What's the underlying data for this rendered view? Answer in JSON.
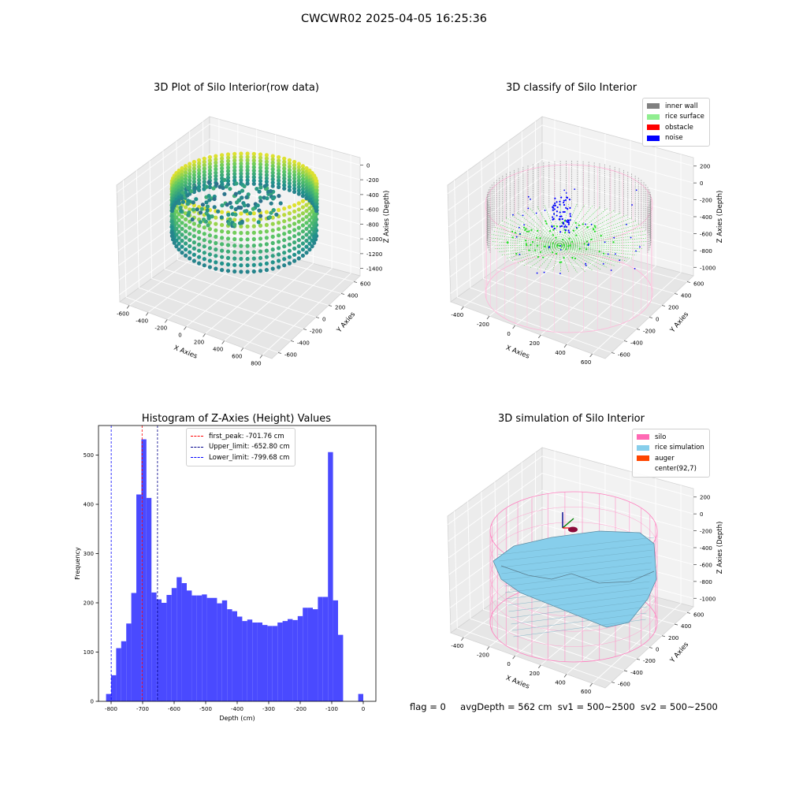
{
  "figure_title": "CWCWR02 2025-04-05 16:25:36",
  "status_line": {
    "flag": "flag = 0",
    "avg_depth": "avgDepth = 562 cm",
    "sv1": "sv1 = 500~2500",
    "sv2": "sv2 = 500~2500"
  },
  "chart_data": [
    {
      "type": "scatter",
      "projection": "3d",
      "title": "3D Plot of Silo Interior(row data)",
      "xlabel": "X Axies",
      "ylabel": "Y Axies",
      "zlabel": "Z Axies (Depth)",
      "xticks": [
        "-600",
        "-400",
        "-200",
        "0",
        "200",
        "400",
        "600",
        "800"
      ],
      "yticks": [
        "-600",
        "-400",
        "-200",
        "0",
        "200",
        "400",
        "600"
      ],
      "zticks": [
        "0",
        "-200",
        "-400",
        "-600",
        "-800",
        "-1000",
        "-1200",
        "-1400"
      ],
      "colormap": "viridis"
    },
    {
      "type": "scatter",
      "projection": "3d",
      "title": "3D classify of Silo Interior",
      "xlabel": "X Axies",
      "ylabel": "Y Axies",
      "zlabel": "Z Axies (Depth)",
      "xticks": [
        "-400",
        "-200",
        "0",
        "200",
        "400",
        "600"
      ],
      "yticks": [
        "-600",
        "-400",
        "-200",
        "0",
        "200",
        "400",
        "600"
      ],
      "zticks": [
        "200",
        "0",
        "-200",
        "-400",
        "-600",
        "-800",
        "-1000"
      ],
      "legend": [
        {
          "label": "inner wall",
          "color": "#808080"
        },
        {
          "label": "rice surface",
          "color": "#90ee90"
        },
        {
          "label": "obstacle",
          "color": "#ff0000"
        },
        {
          "label": "noise",
          "color": "#0000ff"
        }
      ]
    },
    {
      "type": "bar",
      "title": "Histogram of Z-Axies (Height) Values",
      "xlabel": "Depth (cm)",
      "ylabel": "Frequency",
      "xlim": [
        -840,
        40
      ],
      "ylim": [
        0,
        560
      ],
      "xticks": [
        -800,
        -700,
        -600,
        -500,
        -400,
        -300,
        -200,
        -100,
        0
      ],
      "yticks": [
        0,
        100,
        200,
        300,
        400,
        500
      ],
      "bar_color": "#4a4aff",
      "bin_width": 16,
      "bins": [
        {
          "x": -808,
          "v": 15
        },
        {
          "x": -792,
          "v": 53
        },
        {
          "x": -776,
          "v": 108
        },
        {
          "x": -760,
          "v": 122
        },
        {
          "x": -744,
          "v": 158
        },
        {
          "x": -728,
          "v": 220
        },
        {
          "x": -712,
          "v": 420
        },
        {
          "x": -696,
          "v": 532
        },
        {
          "x": -680,
          "v": 413
        },
        {
          "x": -664,
          "v": 221
        },
        {
          "x": -648,
          "v": 207
        },
        {
          "x": -632,
          "v": 200
        },
        {
          "x": -616,
          "v": 216
        },
        {
          "x": -600,
          "v": 230
        },
        {
          "x": -584,
          "v": 252
        },
        {
          "x": -568,
          "v": 240
        },
        {
          "x": -552,
          "v": 225
        },
        {
          "x": -536,
          "v": 215
        },
        {
          "x": -520,
          "v": 215
        },
        {
          "x": -504,
          "v": 217
        },
        {
          "x": -488,
          "v": 210
        },
        {
          "x": -472,
          "v": 210
        },
        {
          "x": -456,
          "v": 199
        },
        {
          "x": -440,
          "v": 205
        },
        {
          "x": -424,
          "v": 187
        },
        {
          "x": -408,
          "v": 183
        },
        {
          "x": -392,
          "v": 172
        },
        {
          "x": -376,
          "v": 163
        },
        {
          "x": -360,
          "v": 166
        },
        {
          "x": -344,
          "v": 160
        },
        {
          "x": -328,
          "v": 160
        },
        {
          "x": -312,
          "v": 155
        },
        {
          "x": -296,
          "v": 153
        },
        {
          "x": -280,
          "v": 153
        },
        {
          "x": -264,
          "v": 160
        },
        {
          "x": -248,
          "v": 163
        },
        {
          "x": -232,
          "v": 167
        },
        {
          "x": -216,
          "v": 165
        },
        {
          "x": -200,
          "v": 173
        },
        {
          "x": -184,
          "v": 190
        },
        {
          "x": -168,
          "v": 190
        },
        {
          "x": -152,
          "v": 187
        },
        {
          "x": -136,
          "v": 212
        },
        {
          "x": -120,
          "v": 212
        },
        {
          "x": -104,
          "v": 506
        },
        {
          "x": -88,
          "v": 205
        },
        {
          "x": -72,
          "v": 135
        },
        {
          "x": -8,
          "v": 15
        }
      ],
      "vlines": [
        {
          "x": -701.76,
          "color": "#ff0000",
          "label": "first_peak: -701.76 cm"
        },
        {
          "x": -652.8,
          "color": "#00008b",
          "label": "Upper_limit: -652.80 cm"
        },
        {
          "x": -799.68,
          "color": "#0000ff",
          "label": "Lower_limit: -799.68 cm"
        }
      ]
    },
    {
      "type": "surface",
      "projection": "3d",
      "title": "3D simulation of Silo Interior",
      "xlabel": "X Axies",
      "ylabel": "Y Axies",
      "zlabel": "Z Axies (Depth)",
      "xticks": [
        "-400",
        "-200",
        "0",
        "200",
        "400",
        "600"
      ],
      "yticks": [
        "-600",
        "-400",
        "-200",
        "0",
        "200",
        "400",
        "600"
      ],
      "zticks": [
        "200",
        "0",
        "-200",
        "-400",
        "-600",
        "-800",
        "-1000"
      ],
      "legend": [
        {
          "label": "silo",
          "color": "#ff69b4"
        },
        {
          "label": "rice simulation",
          "color": "#87ceeb"
        },
        {
          "label": "auger",
          "color": "#ff4500"
        },
        {
          "label": "center(92,7)",
          "color": ""
        }
      ]
    }
  ]
}
